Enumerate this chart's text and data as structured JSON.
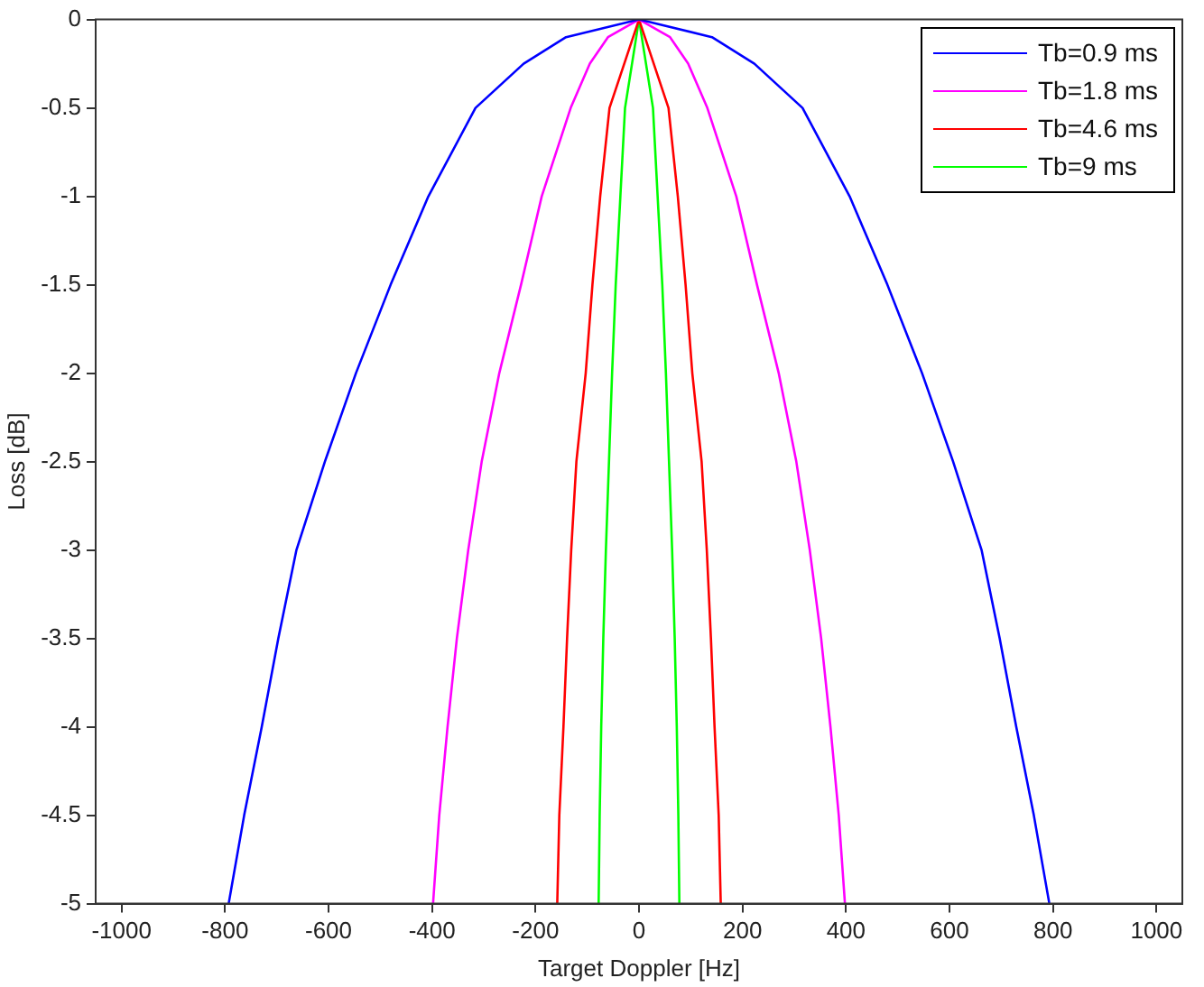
{
  "chart_data": {
    "type": "line",
    "xlabel": "Target Doppler [Hz]",
    "ylabel": "Loss [dB]",
    "xlim": [
      -1050,
      1050
    ],
    "xticks": [
      -1000,
      -800,
      -600,
      -400,
      -200,
      0,
      200,
      400,
      600,
      800,
      1000
    ],
    "ylim": [
      -5,
      0
    ],
    "yticks": [
      0,
      -0.5,
      -1,
      -1.5,
      -2,
      -2.5,
      -3,
      -3.5,
      -4,
      -4.5,
      -5
    ],
    "grid": false,
    "legend": "top right",
    "marker": "none",
    "line_style": "solid",
    "series": [
      {
        "name": "Tb=0.9 ms",
        "color": "#0000ff",
        "x": [
          -793,
          -763,
          -729,
          -697,
          -662,
          -607,
          -547,
          -480,
          -407,
          -316,
          -223,
          -141,
          0,
          141,
          223,
          316,
          407,
          480,
          547,
          607,
          662,
          697,
          729,
          763,
          793
        ],
        "values": [
          -5,
          -4.5,
          -4,
          -3.5,
          -3,
          -2.5,
          -2,
          -1.5,
          -1,
          -0.5,
          -0.25,
          -0.1,
          0,
          -0.1,
          -0.25,
          -0.5,
          -1,
          -1.5,
          -2,
          -2.5,
          -3,
          -3.5,
          -4,
          -4.5,
          -5
        ]
      },
      {
        "name": "Tb=1.8 ms",
        "color": "#ff00ff",
        "x": [
          -398,
          -386,
          -370,
          -352,
          -330,
          -304,
          -270,
          -228,
          -188,
          -132,
          -95,
          -60,
          0,
          60,
          95,
          132,
          188,
          228,
          270,
          304,
          330,
          352,
          370,
          386,
          398
        ],
        "values": [
          -5,
          -4.5,
          -4,
          -3.5,
          -3,
          -2.5,
          -2,
          -1.5,
          -1,
          -0.5,
          -0.25,
          -0.1,
          0,
          -0.1,
          -0.25,
          -0.5,
          -1,
          -1.5,
          -2,
          -2.5,
          -3,
          -3.5,
          -4,
          -4.5,
          -5
        ]
      },
      {
        "name": "Tb=4.6 ms",
        "color": "#ff0000",
        "x": [
          -158,
          -154,
          -146,
          -139,
          -131,
          -121,
          -103,
          -90,
          -75,
          -57,
          0,
          57,
          75,
          90,
          103,
          121,
          131,
          139,
          146,
          154,
          158
        ],
        "values": [
          -5,
          -4.5,
          -4,
          -3.5,
          -3,
          -2.5,
          -2,
          -1.5,
          -1,
          -0.5,
          0,
          -0.5,
          -1,
          -1.5,
          -2,
          -2.5,
          -3,
          -3.5,
          -4,
          -4.5,
          -5
        ]
      },
      {
        "name": "Tb=9 ms",
        "color": "#00ff00",
        "x": [
          -78,
          -76,
          -73,
          -69,
          -64,
          -58,
          -52,
          -45,
          -36,
          -27,
          0,
          27,
          36,
          45,
          52,
          58,
          64,
          69,
          73,
          76,
          78
        ],
        "values": [
          -5,
          -4.5,
          -4,
          -3.5,
          -3,
          -2.5,
          -2,
          -1.5,
          -1,
          -0.5,
          0,
          -0.5,
          -1,
          -1.5,
          -2,
          -2.5,
          -3,
          -3.5,
          -4,
          -4.5,
          -5
        ]
      }
    ]
  }
}
